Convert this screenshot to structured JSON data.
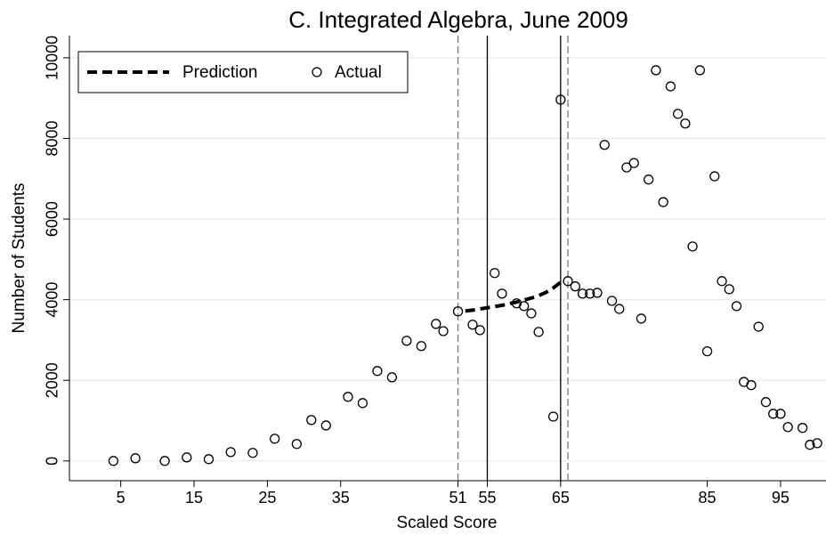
{
  "chart_data": {
    "type": "scatter",
    "title": "C. Integrated Algebra, June 2009",
    "x_label": "Scaled Score",
    "y_label": "Number of Students",
    "xlim": [
      -2,
      101.2
    ],
    "ylim": [
      -490,
      10550
    ],
    "xticks": [
      5,
      15,
      25,
      35,
      51,
      55,
      65,
      85,
      95
    ],
    "yticks": [
      0,
      2000,
      4000,
      6000,
      8000,
      10000
    ],
    "grid": true,
    "legend": "upper left",
    "vlines": [
      {
        "x": 51,
        "style": "dashed",
        "color": "#777777"
      },
      {
        "x": 55,
        "style": "solid",
        "color": "#000000"
      },
      {
        "x": 65,
        "style": "solid",
        "color": "#000000"
      },
      {
        "x": 66,
        "style": "dashed",
        "color": "#777777"
      }
    ],
    "series": [
      {
        "name": "Prediction",
        "type": "line",
        "color": "#000000",
        "x": [
          52,
          53,
          54,
          55,
          56,
          57,
          58,
          59,
          60,
          61,
          62,
          63,
          64,
          65
        ],
        "values": [
          3720,
          3740,
          3770,
          3800,
          3830,
          3860,
          3900,
          3940,
          3990,
          4040,
          4100,
          4180,
          4290,
          4430
        ]
      },
      {
        "name": "Actual",
        "type": "scatter",
        "color": "#000000",
        "x": [
          4,
          7,
          11,
          14,
          17,
          20,
          23,
          26,
          29,
          31,
          33,
          36,
          38,
          40,
          42,
          44,
          46,
          48,
          49,
          51,
          53,
          54,
          56,
          57,
          59,
          60,
          61,
          62,
          64,
          65,
          66,
          67,
          68,
          69,
          70,
          71,
          72,
          73,
          74,
          75,
          76,
          77,
          78,
          79,
          80,
          81,
          82,
          83,
          84,
          85,
          86,
          87,
          88,
          89,
          90,
          91,
          92,
          93,
          94,
          95,
          96,
          98,
          99,
          100
        ],
        "values": [
          0,
          66,
          0,
          88,
          44,
          220,
          200,
          550,
          420,
          1015,
          880,
          1590,
          1435,
          2230,
          2075,
          2980,
          2850,
          3400,
          3220,
          3710,
          3380,
          3245,
          4660,
          4150,
          3910,
          3840,
          3660,
          3200,
          1100,
          8960,
          4460,
          4330,
          4150,
          4150,
          4170,
          7840,
          3970,
          3770,
          7280,
          7390,
          3530,
          6980,
          9690,
          6420,
          9290,
          8610,
          8370,
          5320,
          9690,
          2720,
          7060,
          4460,
          4260,
          3840,
          1960,
          1880,
          3330,
          1460,
          1170,
          1170,
          840,
          820,
          400,
          440
        ]
      }
    ]
  }
}
